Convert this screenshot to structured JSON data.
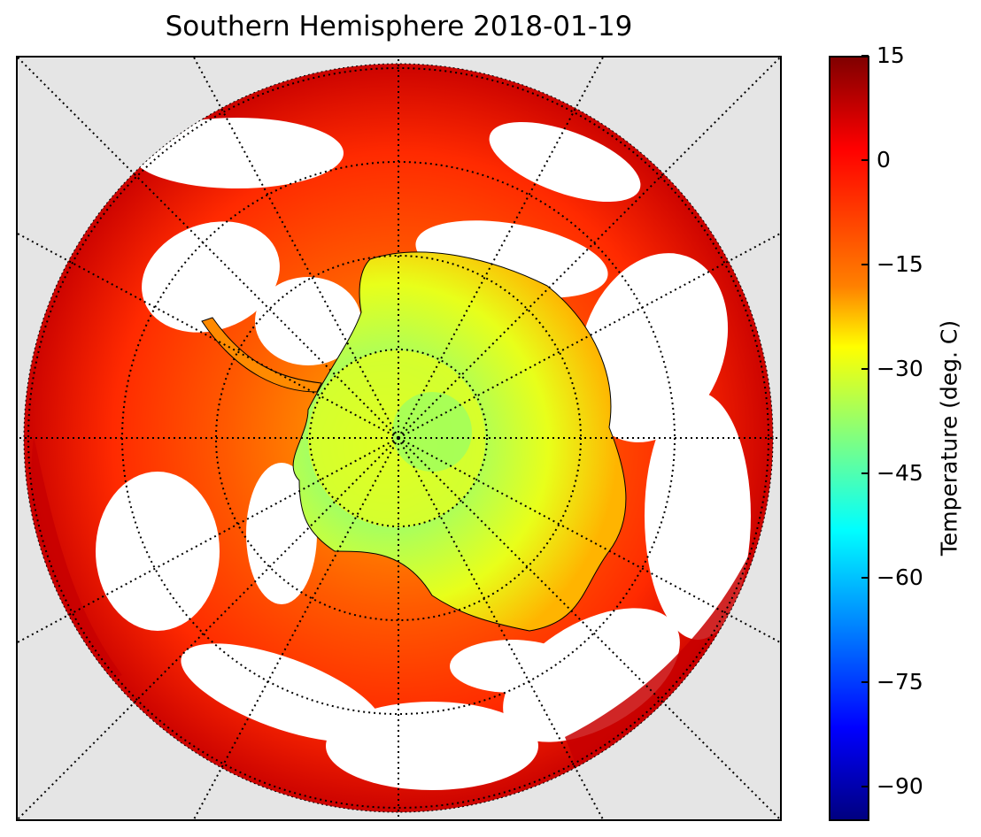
{
  "title": "Southern Hemisphere 2018-01-19",
  "colorbar": {
    "label": "Temperature (deg. C)",
    "range": [
      -95,
      15
    ],
    "colormap": "jet",
    "ticks": [
      "15",
      "0",
      "−15",
      "−30",
      "−45",
      "−60",
      "−75",
      "−90"
    ]
  },
  "map": {
    "projection": "south polar stereographic",
    "background_color": "#e5e5e5",
    "graticule": "dotted",
    "colors": {
      "warm": "#d20000",
      "mid": "#ff4a00",
      "orange": "#ff8a00",
      "yellow": "#e8ff1a",
      "green": "#7dff7a"
    }
  }
}
